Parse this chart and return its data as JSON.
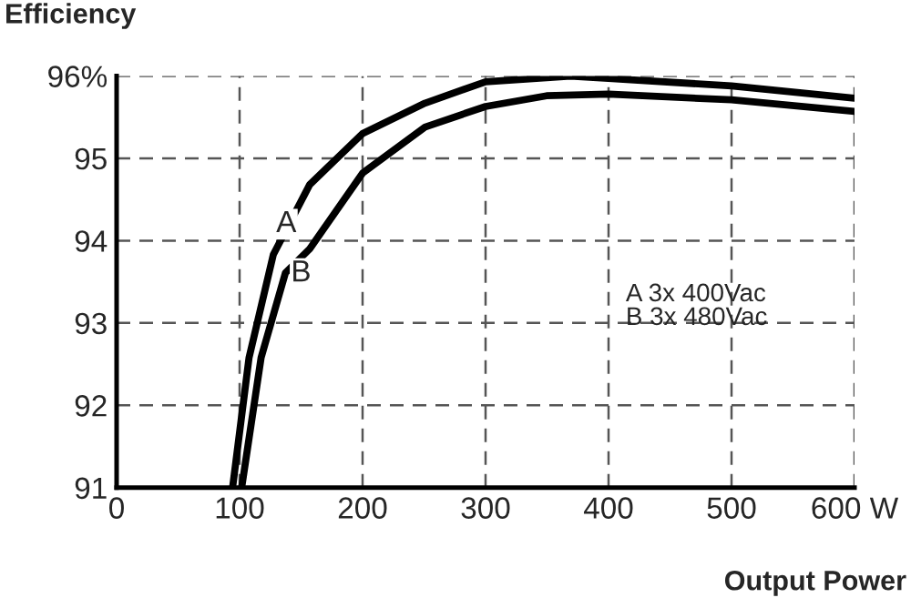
{
  "chart_data": {
    "type": "line",
    "ylabel": "Efficiency",
    "xlabel": "Output Power",
    "series": [
      {
        "color": "#000000",
        "x": [
          94.3,
          107.7,
          127.4,
          157,
          200,
          250.8,
          300,
          369,
          400,
          500,
          600
        ],
        "values": [
          91,
          92.58,
          93.83,
          94.68,
          95.3,
          95.67,
          95.93,
          96.0,
          95.97,
          95.88,
          95.73
        ]
      },
      {
        "color": "#000000",
        "x": [
          101.7,
          117.5,
          137.3,
          157,
          200,
          250.8,
          300,
          349.6,
          400,
          500,
          600
        ],
        "values": [
          91,
          92.58,
          93.61,
          93.9,
          94.82,
          95.38,
          95.63,
          95.76,
          95.78,
          95.71,
          95.57
        ]
      }
    ],
    "annotations": [
      {
        "text": "A",
        "x": 138,
        "y": 94.2
      },
      {
        "text": "B",
        "x": 150,
        "y": 93.6
      },
      "A 3x 400Vac\nB 3x 480Vac"
    ],
    "xlim": [
      0,
      600
    ],
    "ylim": [
      91,
      96
    ],
    "xticks": [
      0,
      100,
      200,
      300,
      400,
      500,
      {
        "value": 600,
        "label": "600 W"
      }
    ],
    "yticks": [
      91,
      92,
      93,
      94,
      95,
      {
        "value": 96,
        "label": "96%"
      }
    ],
    "grid": true,
    "line_style": "solid",
    "marker": "none"
  }
}
